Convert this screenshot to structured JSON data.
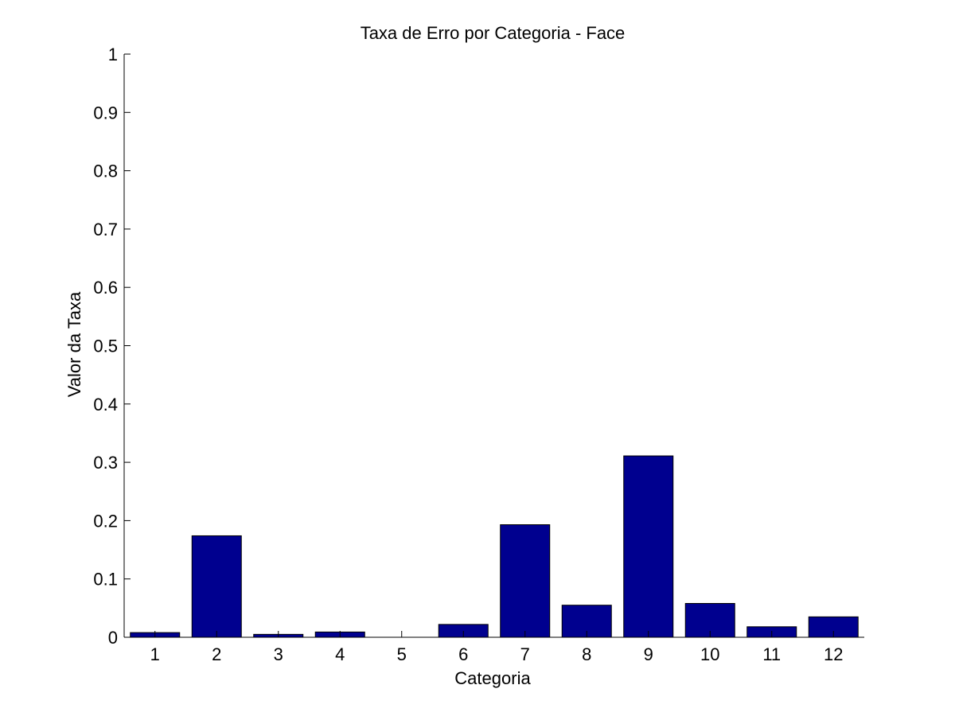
{
  "chart_data": {
    "type": "bar",
    "title": "Taxa de Erro por Categoria - Face",
    "xlabel": "Categoria",
    "ylabel": "Valor da Taxa",
    "categories": [
      "1",
      "2",
      "3",
      "4",
      "5",
      "6",
      "7",
      "8",
      "9",
      "10",
      "11",
      "12"
    ],
    "values": [
      0.008,
      0.174,
      0.005,
      0.009,
      0.0,
      0.022,
      0.193,
      0.055,
      0.311,
      0.058,
      0.018,
      0.035
    ],
    "ylim": [
      0,
      1
    ],
    "xlim": [
      0.5,
      12.5
    ],
    "yticks": [
      "0",
      "0.1",
      "0.2",
      "0.3",
      "0.4",
      "0.5",
      "0.6",
      "0.7",
      "0.8",
      "0.9",
      "1"
    ],
    "bar_color": "#00008f",
    "grid": false,
    "legend": "none"
  }
}
